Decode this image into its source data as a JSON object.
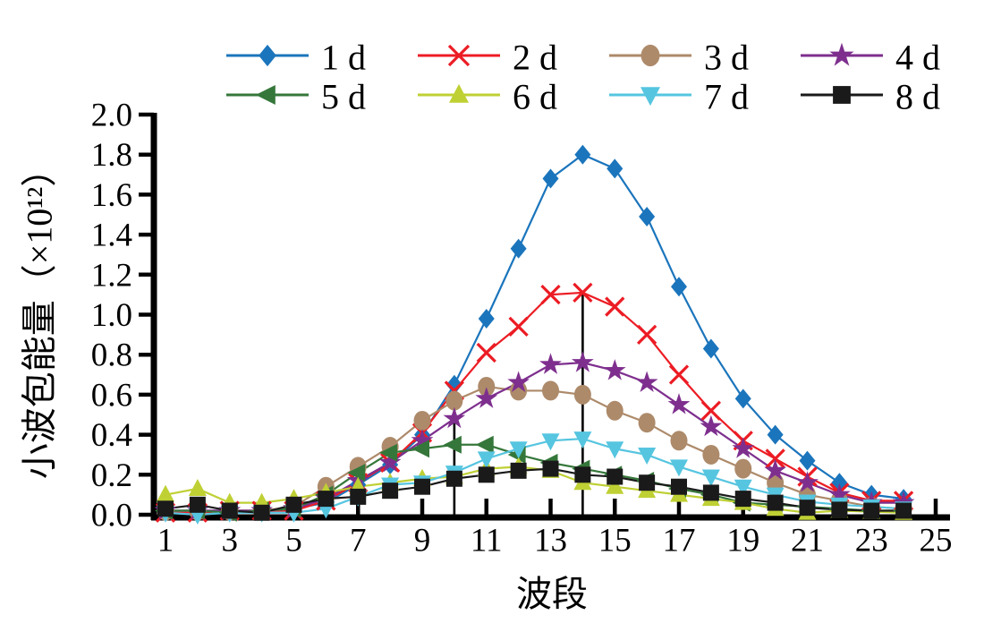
{
  "figure_title": "",
  "chart_data": {
    "type": "line",
    "title": "",
    "xlabel": "波段",
    "ylabel": "小波包能量（×10¹²）",
    "x": [
      1,
      2,
      3,
      4,
      5,
      6,
      7,
      8,
      9,
      10,
      11,
      12,
      13,
      14,
      15,
      16,
      17,
      18,
      19,
      20,
      21,
      22,
      23,
      24
    ],
    "xlim": [
      1,
      25
    ],
    "ylim": [
      0.0,
      2.0
    ],
    "ytick_step": 0.2,
    "ytick_labels": [
      "0.0",
      "0.2",
      "0.4",
      "0.6",
      "0.8",
      "1.0",
      "1.2",
      "1.4",
      "1.6",
      "1.8",
      "2.0"
    ],
    "xtick_labels": [
      "1",
      "3",
      "5",
      "7",
      "9",
      "11",
      "13",
      "15",
      "17",
      "19",
      "21",
      "23",
      "25"
    ],
    "xticks": [
      1,
      3,
      5,
      7,
      9,
      11,
      13,
      15,
      17,
      19,
      21,
      23,
      25
    ],
    "grid": false,
    "legend_position": "top",
    "axis_color": "#000000",
    "series": [
      {
        "name": "1 d",
        "color": "#1b75bc",
        "marker": "diamond",
        "values": [
          0.02,
          0.02,
          0.02,
          0.02,
          0.03,
          0.06,
          0.15,
          0.25,
          0.4,
          0.65,
          0.98,
          1.33,
          1.68,
          1.8,
          1.73,
          1.49,
          1.14,
          0.83,
          0.58,
          0.4,
          0.27,
          0.16,
          0.1,
          0.08
        ]
      },
      {
        "name": "2 d",
        "color": "#ec1c24",
        "marker": "x",
        "values": [
          0.01,
          0.01,
          0.02,
          0.02,
          0.02,
          0.07,
          0.16,
          0.26,
          0.41,
          0.62,
          0.81,
          0.94,
          1.1,
          1.11,
          1.04,
          0.9,
          0.7,
          0.52,
          0.37,
          0.28,
          0.19,
          0.11,
          0.07,
          0.07
        ]
      },
      {
        "name": "3 d",
        "color": "#ad8a6a",
        "marker": "circle",
        "values": [
          0.02,
          0.02,
          0.02,
          0.02,
          0.04,
          0.14,
          0.24,
          0.34,
          0.47,
          0.57,
          0.64,
          0.62,
          0.62,
          0.6,
          0.52,
          0.46,
          0.37,
          0.3,
          0.23,
          0.16,
          0.1,
          0.07,
          0.04,
          0.03
        ]
      },
      {
        "name": "4 d",
        "color": "#7e2f8e",
        "marker": "star",
        "values": [
          0.02,
          0.02,
          0.02,
          0.02,
          0.03,
          0.08,
          0.17,
          0.26,
          0.37,
          0.48,
          0.58,
          0.66,
          0.75,
          0.76,
          0.72,
          0.66,
          0.55,
          0.44,
          0.33,
          0.22,
          0.16,
          0.1,
          0.06,
          0.06
        ]
      },
      {
        "name": "5 d",
        "color": "#35773a",
        "marker": "triangle-left",
        "values": [
          0.02,
          0.02,
          0.01,
          0.02,
          0.03,
          0.1,
          0.21,
          0.31,
          0.33,
          0.35,
          0.35,
          0.3,
          0.26,
          0.23,
          0.2,
          0.17,
          0.13,
          0.1,
          0.06,
          0.05,
          0.04,
          0.03,
          0.02,
          0.02
        ]
      },
      {
        "name": "6 d",
        "color": "#bfd034",
        "marker": "triangle-up",
        "values": [
          0.1,
          0.13,
          0.06,
          0.06,
          0.08,
          0.11,
          0.14,
          0.16,
          0.18,
          0.19,
          0.23,
          0.24,
          0.22,
          0.16,
          0.14,
          0.12,
          0.1,
          0.08,
          0.06,
          0.03,
          0.01,
          0.02,
          0.015,
          0.01
        ]
      },
      {
        "name": "7 d",
        "color": "#56c5e0",
        "marker": "triangle-down",
        "values": [
          0.01,
          0.0,
          0.01,
          0.01,
          0.01,
          0.03,
          0.09,
          0.15,
          0.16,
          0.21,
          0.28,
          0.33,
          0.37,
          0.38,
          0.33,
          0.3,
          0.24,
          0.19,
          0.14,
          0.1,
          0.065,
          0.05,
          0.04,
          0.03
        ]
      },
      {
        "name": "8 d",
        "color": "#1a1a1a",
        "marker": "square",
        "values": [
          0.03,
          0.05,
          0.02,
          0.01,
          0.05,
          0.08,
          0.09,
          0.12,
          0.14,
          0.18,
          0.2,
          0.22,
          0.23,
          0.2,
          0.19,
          0.16,
          0.14,
          0.11,
          0.08,
          0.06,
          0.035,
          0.025,
          0.02,
          0.02
        ]
      }
    ],
    "annotations": [
      {
        "type": "vline",
        "x": 10,
        "y0": 0.0,
        "y1": 0.57
      },
      {
        "type": "vline",
        "x": 14,
        "y0": 0.0,
        "y1": 1.11
      }
    ]
  }
}
